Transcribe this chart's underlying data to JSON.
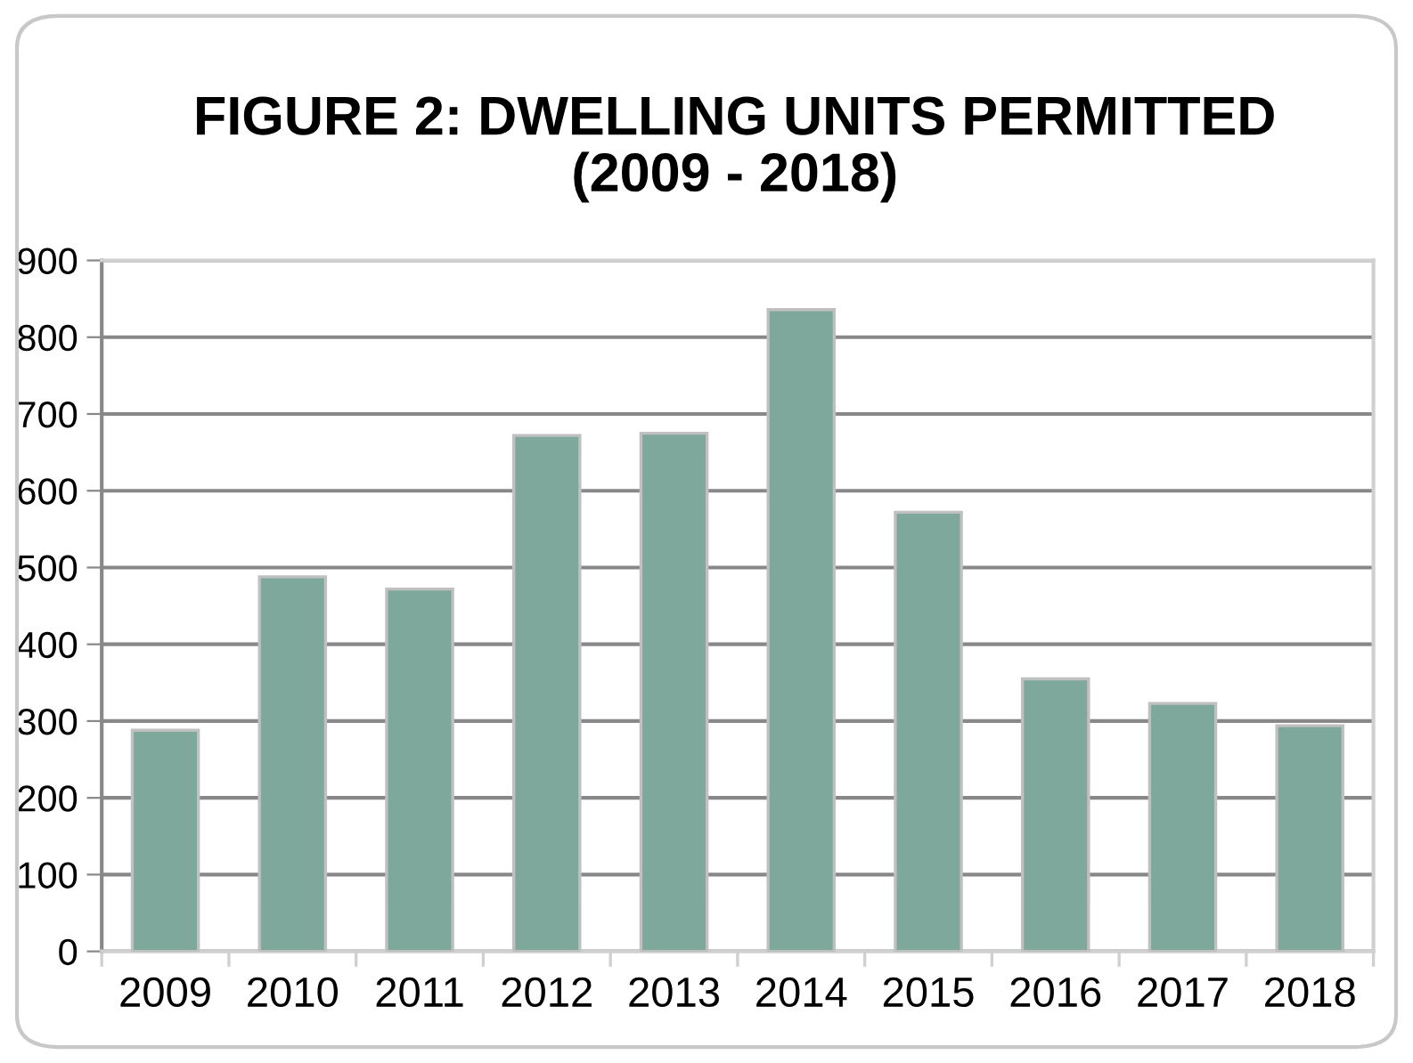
{
  "chart_data": {
    "type": "bar",
    "title": "FIGURE 2: DWELLING UNITS PERMITTED\n(2009 - 2018)",
    "categories": [
      "2009",
      "2010",
      "2011",
      "2012",
      "2013",
      "2014",
      "2015",
      "2016",
      "2017",
      "2018"
    ],
    "values": [
      288,
      488,
      472,
      672,
      675,
      836,
      572,
      355,
      323,
      294
    ],
    "color": "#7fa89d",
    "ylim": [
      0,
      900
    ],
    "yticks": [
      0,
      100,
      200,
      300,
      400,
      500,
      600,
      700,
      800,
      900
    ],
    "grid": "y",
    "legend": false
  }
}
